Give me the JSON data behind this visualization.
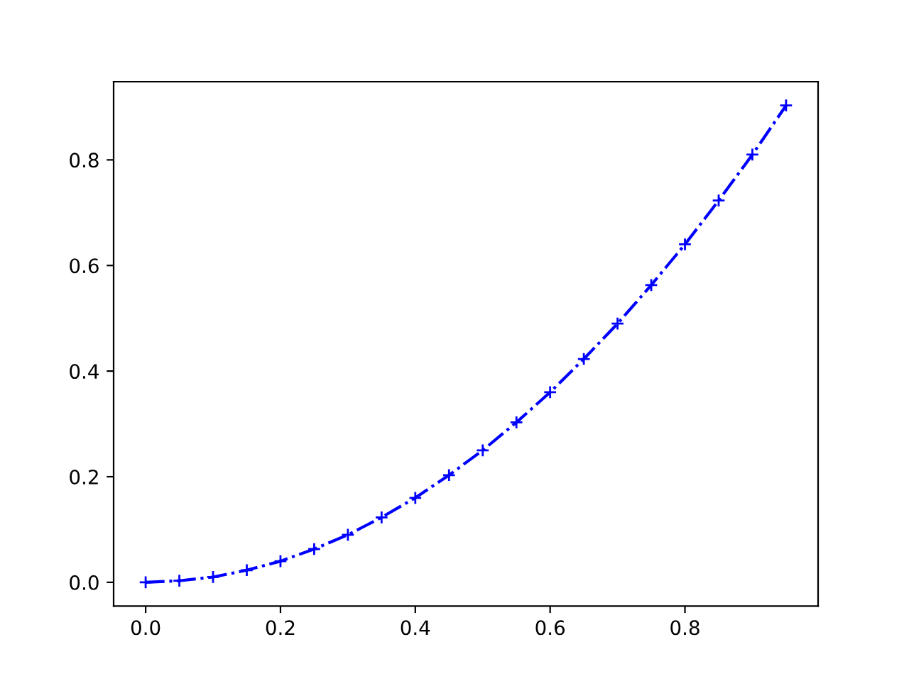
{
  "chart_data": {
    "type": "line",
    "x": [
      0,
      0.05,
      0.1,
      0.15,
      0.2,
      0.25,
      0.3,
      0.35,
      0.4,
      0.45,
      0.5,
      0.55,
      0.6,
      0.65,
      0.7,
      0.75,
      0.8,
      0.85,
      0.9,
      0.95
    ],
    "series": [
      {
        "color": "#0000ff",
        "values": [
          0,
          0.003,
          0.01,
          0.023,
          0.04,
          0.063,
          0.09,
          0.123,
          0.16,
          0.203,
          0.25,
          0.303,
          0.36,
          0.423,
          0.49,
          0.563,
          0.64,
          0.723,
          0.81,
          0.903
        ]
      }
    ],
    "xlim": [
      -0.0475,
      0.9975
    ],
    "ylim": [
      -0.045,
      0.948
    ],
    "xticks": [
      {
        "value": 0,
        "label": "0.0"
      },
      0.2,
      0.4,
      0.6,
      0.8
    ],
    "yticks": [
      {
        "value": 0,
        "label": "0.0"
      },
      0.2,
      0.4,
      0.6,
      0.8
    ],
    "marker": "cross",
    "line_style": "dashdot",
    "grid": false,
    "legend": false
  }
}
